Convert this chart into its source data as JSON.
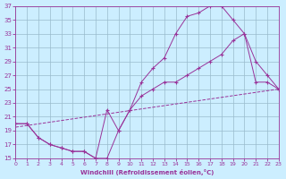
{
  "background_color": "#cceeff",
  "line_color": "#993399",
  "grid_color": "#99bbcc",
  "xlim": [
    0,
    23
  ],
  "ylim": [
    15,
    37
  ],
  "yticks": [
    15,
    17,
    19,
    21,
    23,
    25,
    27,
    29,
    31,
    33,
    35,
    37
  ],
  "xticks": [
    0,
    1,
    2,
    3,
    4,
    5,
    6,
    7,
    8,
    9,
    10,
    11,
    12,
    13,
    14,
    15,
    16,
    17,
    18,
    19,
    20,
    21,
    22,
    23
  ],
  "xlabel": "Windchill (Refroidissement éolien,°C)",
  "curve1_x": [
    0,
    1,
    2,
    3,
    4,
    5,
    6,
    7,
    8,
    9,
    10,
    11,
    12,
    13,
    14,
    15,
    16,
    17,
    18,
    19,
    20,
    21,
    22,
    23
  ],
  "curve1_y": [
    20,
    20,
    18,
    17,
    16.5,
    16,
    16,
    15,
    15,
    19,
    22,
    26,
    28,
    29.5,
    33,
    35.5,
    36,
    37,
    37,
    35,
    33,
    29,
    27,
    25
  ],
  "curve2_x": [
    0,
    1,
    2,
    3,
    4,
    5,
    6,
    7,
    8,
    9,
    10,
    11,
    12,
    13,
    14,
    15,
    16,
    17,
    18,
    19,
    20,
    21,
    22,
    23
  ],
  "curve2_y": [
    20,
    20,
    18,
    17,
    16.5,
    16,
    16,
    15,
    22,
    19,
    22,
    24,
    25,
    26,
    26,
    27,
    28,
    29,
    30,
    32,
    33,
    26,
    26,
    25
  ],
  "line_x": [
    0,
    23
  ],
  "line_y": [
    19.5,
    25
  ]
}
